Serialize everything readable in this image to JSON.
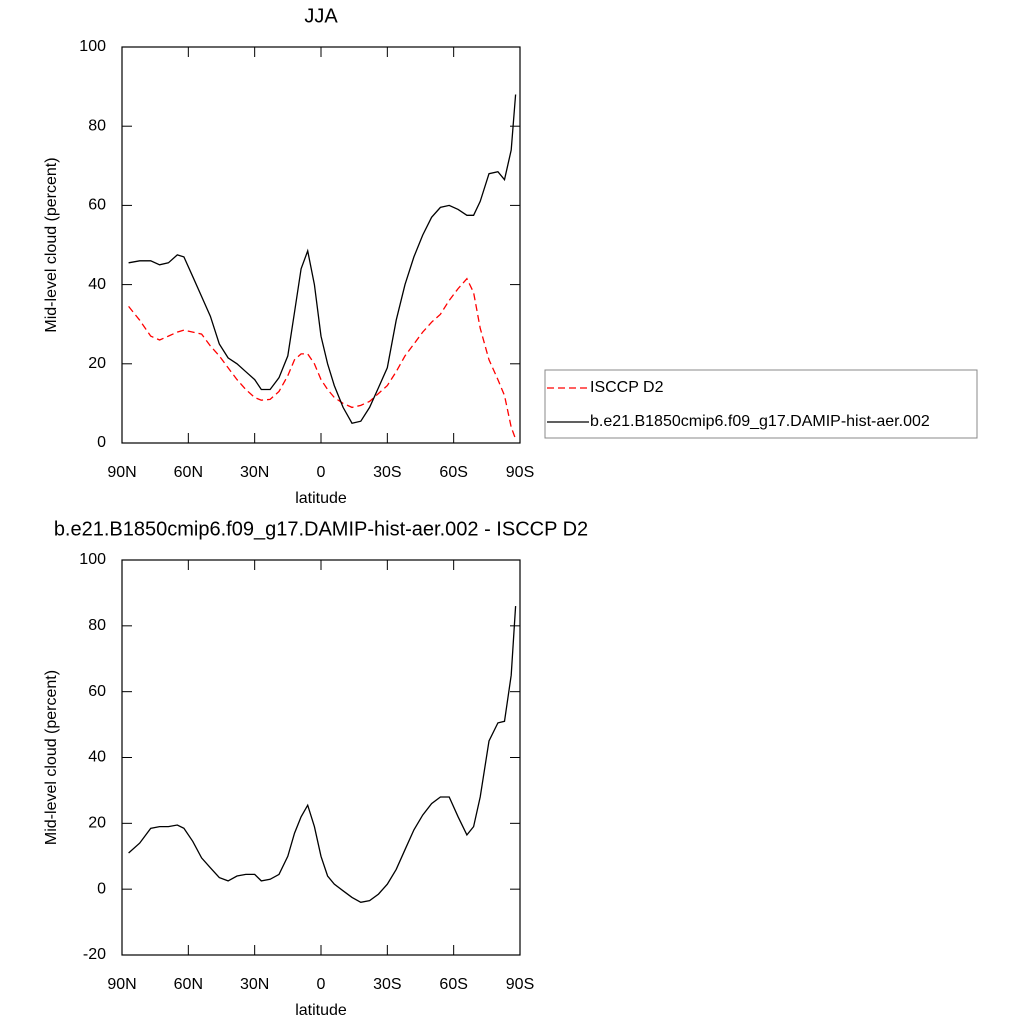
{
  "chart_data": [
    {
      "type": "line",
      "title": "JJA",
      "xlabel": "latitude",
      "ylabel": "Mid-level cloud (percent)",
      "x": [
        87,
        82,
        77,
        73,
        69,
        65,
        62,
        58,
        54,
        50,
        46,
        42,
        38,
        34,
        30,
        27,
        23,
        19,
        15,
        12,
        9,
        6,
        3,
        0,
        -3,
        -6,
        -10,
        -14,
        -18,
        -22,
        -26,
        -30,
        -34,
        -38,
        -42,
        -46,
        -50,
        -54,
        -58,
        -62,
        -66,
        -69,
        -72,
        -76,
        -80,
        -83,
        -86,
        -88
      ],
      "series": [
        {
          "name": "ISCCP D2",
          "color": "#ff0000",
          "dash": true,
          "values": [
            34.5,
            31,
            27,
            26,
            27,
            28,
            28.5,
            28,
            27.5,
            24.5,
            22,
            19,
            16,
            13.5,
            11.5,
            10.8,
            11,
            13,
            17,
            21,
            22.5,
            22.5,
            20,
            16,
            13.5,
            11.5,
            10,
            9,
            9.5,
            10.5,
            12.5,
            14.5,
            18,
            22,
            25,
            28,
            30.5,
            32.5,
            36,
            39,
            41.5,
            38,
            29,
            21,
            16,
            12,
            4,
            1
          ]
        },
        {
          "name": "b.e21.B1850cmip6.f09_g17.DAMIP-hist-aer.002",
          "color": "#000000",
          "dash": false,
          "values": [
            45.5,
            46,
            46,
            45,
            45.5,
            47.5,
            47,
            42,
            37,
            32,
            25,
            21.5,
            20,
            18,
            16,
            13.5,
            13.5,
            16.5,
            22,
            33,
            44,
            48.5,
            40,
            27,
            20,
            14.5,
            9,
            5,
            5.5,
            9,
            14,
            19,
            31,
            40,
            47,
            52.5,
            57,
            59.5,
            60,
            59,
            57.5,
            57.5,
            61,
            68,
            68.5,
            66.5,
            74,
            88
          ]
        }
      ],
      "xlim": [
        90,
        -90
      ],
      "xticks": [
        {
          "value": 90,
          "label": "90N"
        },
        {
          "value": 60,
          "label": "60N"
        },
        {
          "value": 30,
          "label": "30N"
        },
        0,
        {
          "value": -30,
          "label": "30S"
        },
        {
          "value": -60,
          "label": "60S"
        },
        {
          "value": -90,
          "label": "90S"
        }
      ],
      "ylim": [
        0,
        100
      ],
      "yticks": [
        0,
        20,
        40,
        60,
        80,
        100
      ],
      "legend": "right"
    },
    {
      "type": "line",
      "title": "b.e21.B1850cmip6.f09_g17.DAMIP-hist-aer.002 - ISCCP D2",
      "xlabel": "latitude",
      "ylabel": "Mid-level cloud (percent)",
      "x": [
        87,
        82,
        77,
        73,
        69,
        65,
        62,
        58,
        54,
        50,
        46,
        42,
        38,
        34,
        30,
        27,
        23,
        19,
        15,
        12,
        9,
        6,
        3,
        0,
        -3,
        -6,
        -10,
        -14,
        -18,
        -22,
        -26,
        -30,
        -34,
        -38,
        -42,
        -46,
        -50,
        -54,
        -58,
        -62,
        -66,
        -69,
        -72,
        -76,
        -80,
        -83,
        -86,
        -88
      ],
      "series": [
        {
          "color": "#000000",
          "dash": false,
          "values": [
            11,
            14,
            18.5,
            19,
            19,
            19.5,
            18.5,
            14.5,
            9.5,
            6.5,
            3.5,
            2.5,
            4,
            4.5,
            4.5,
            2.5,
            3,
            4.5,
            10,
            17,
            22,
            25.5,
            19,
            10,
            4,
            1.5,
            -0.5,
            -2.5,
            -4,
            -3.5,
            -1.5,
            1.5,
            6,
            12,
            18,
            22.5,
            26,
            28,
            28,
            22,
            16.5,
            19,
            28,
            45,
            50.5,
            51,
            65,
            86
          ]
        }
      ],
      "xlim": [
        90,
        -90
      ],
      "xticks": [
        {
          "value": 90,
          "label": "90N"
        },
        {
          "value": 60,
          "label": "60N"
        },
        {
          "value": 30,
          "label": "30N"
        },
        0,
        {
          "value": -30,
          "label": "30S"
        },
        {
          "value": -60,
          "label": "60S"
        },
        {
          "value": -90,
          "label": "90S"
        }
      ],
      "ylim": [
        -20,
        100
      ],
      "yticks": [
        -20,
        0,
        20,
        40,
        60,
        80,
        100
      ]
    }
  ]
}
